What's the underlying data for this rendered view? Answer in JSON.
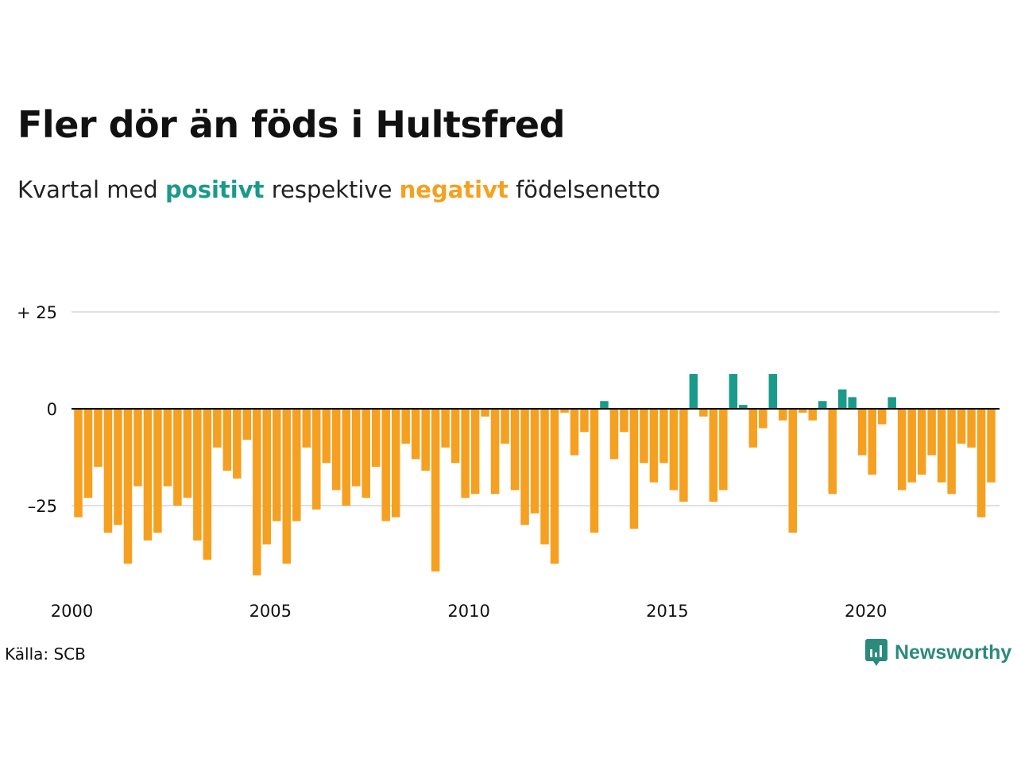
{
  "title": "Fler dör än föds i Hultsfred",
  "subtitle": {
    "prefix": "Kvartal med",
    "positive": "positivt",
    "middle": "respektive",
    "negative": "negativt",
    "suffix": "födelsenetto"
  },
  "source": "Källa: SCB",
  "brand": {
    "name": "Newsworthy",
    "icon": "newsworthy-logo-icon"
  },
  "colors": {
    "positive": "#1a9a8a",
    "negative": "#f5a020",
    "grid": "#e0e0e0",
    "zero_line": "#000000"
  },
  "chart_data": {
    "type": "bar",
    "x_start": 2000,
    "period": "quarter",
    "values": [
      -28,
      -23,
      -15,
      -32,
      -30,
      -40,
      -20,
      -34,
      -32,
      -20,
      -25,
      -23,
      -34,
      -39,
      -10,
      -16,
      -18,
      -8,
      -43,
      -35,
      -29,
      -40,
      -29,
      -10,
      -26,
      -14,
      -21,
      -25,
      -20,
      -23,
      -15,
      -29,
      -28,
      -9,
      -13,
      -16,
      -42,
      -10,
      -14,
      -23,
      -22,
      -2,
      -22,
      -9,
      -21,
      -30,
      -27,
      -35,
      -40,
      -1,
      -12,
      -6,
      -32,
      2,
      -13,
      -6,
      -31,
      -14,
      -19,
      -14,
      -21,
      -24,
      9,
      -2,
      -24,
      -21,
      9,
      1,
      -10,
      -5,
      9,
      -3,
      -32,
      -1,
      -3,
      2,
      -22,
      5,
      3,
      -12,
      -17,
      -4,
      3,
      -21,
      -19,
      -17,
      -12,
      -19,
      -22,
      -9,
      -10,
      -28,
      -19
    ],
    "y_ticks": [
      {
        "value": 25,
        "label": "+ 25"
      },
      {
        "value": 0,
        "label": "0"
      },
      {
        "value": -25,
        "label": "–25"
      }
    ],
    "x_ticks": [
      "2000",
      "2005",
      "2010",
      "2015",
      "2020"
    ],
    "ylim": [
      -50,
      25
    ]
  }
}
